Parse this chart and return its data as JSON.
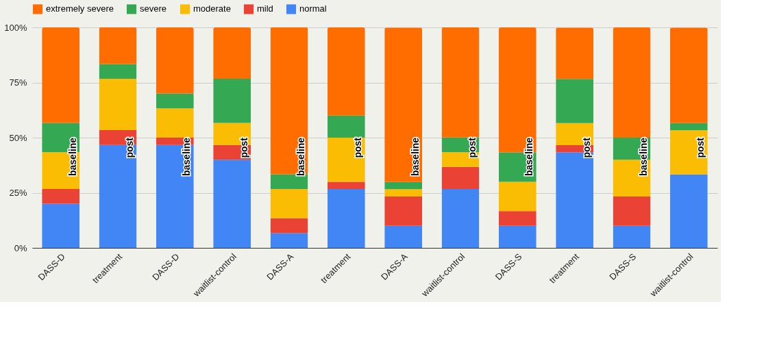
{
  "chart_data": {
    "type": "bar",
    "stacked": true,
    "categories": [
      "DASS-D",
      "treatment",
      "DASS-D",
      "waitlist-control",
      "DASS-A",
      "treatment",
      "DASS-A",
      "waitlist-control",
      "DASS-S",
      "treatment",
      "DASS-S",
      "waitlist-control"
    ],
    "series": [
      {
        "name": "normal",
        "color": "#4285f4",
        "values": [
          20,
          46.7,
          46.7,
          40,
          6.7,
          26.7,
          10,
          26.7,
          10,
          43.3,
          10,
          33.3
        ]
      },
      {
        "name": "mild",
        "color": "#ea4335",
        "values": [
          6.7,
          6.7,
          3.3,
          6.7,
          6.7,
          3.3,
          13.3,
          10,
          6.7,
          3.3,
          13.3,
          0
        ]
      },
      {
        "name": "moderate",
        "color": "#fbbc04",
        "values": [
          16.7,
          23.3,
          13.3,
          10,
          13.3,
          20,
          3.3,
          6.7,
          13.3,
          10,
          16.7,
          20
        ]
      },
      {
        "name": "severe",
        "color": "#34a853",
        "values": [
          13.3,
          6.7,
          6.7,
          20,
          6.7,
          10,
          3.3,
          6.7,
          13.3,
          20,
          10,
          3.3
        ]
      },
      {
        "name": "extremely severe",
        "color": "#ff6d01",
        "values": [
          43.3,
          16.7,
          30,
          23.3,
          66.7,
          40,
          70,
          50,
          56.7,
          23.3,
          50,
          43.3
        ]
      }
    ],
    "ylim": [
      0,
      100
    ],
    "yticks": [
      {
        "value": 0,
        "label": "0%"
      },
      {
        "value": 25,
        "label": "25%"
      },
      {
        "value": 50,
        "label": "50%"
      },
      {
        "value": 75,
        "label": "75%"
      },
      {
        "value": 100,
        "label": "100%"
      }
    ],
    "grid": "y",
    "legend": "top",
    "annotations": [
      "baseline",
      "post",
      "baseline",
      "post",
      "baseline",
      "post",
      "baseline",
      "post",
      "baseline",
      "post",
      "baseline",
      "post"
    ]
  }
}
